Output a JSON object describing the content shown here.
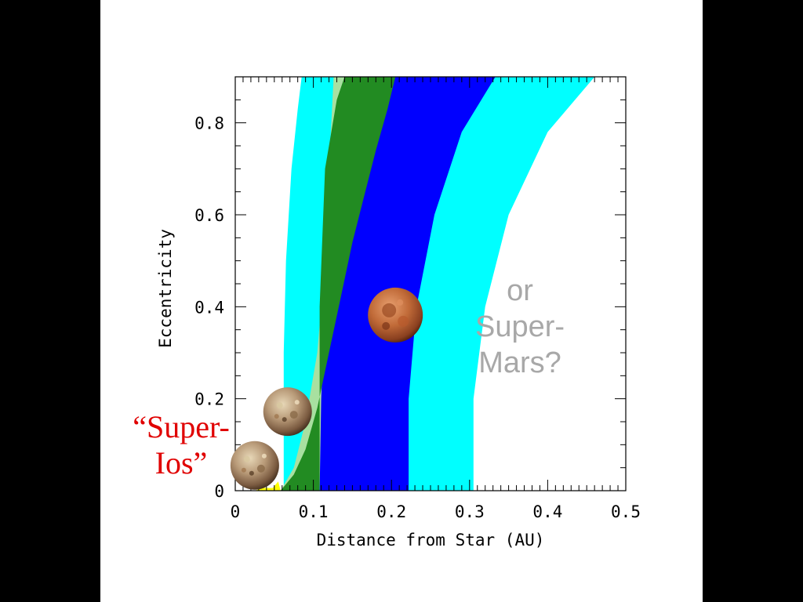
{
  "chart_data": {
    "type": "area",
    "xlabel": "Distance from Star (AU)",
    "ylabel": "Eccentricity",
    "xlim": [
      0,
      0.5
    ],
    "ylim": [
      0,
      0.9
    ],
    "x_ticks": [
      "0",
      "0.1",
      "0.2",
      "0.3",
      "0.4",
      "0.5"
    ],
    "x_tick_values": [
      0,
      0.1,
      0.2,
      0.3,
      0.4,
      0.5
    ],
    "y_ticks": [
      "0",
      "0.2",
      "0.4",
      "0.6",
      "0.8"
    ],
    "y_tick_values": [
      0,
      0.2,
      0.4,
      0.6,
      0.8
    ],
    "regions": [
      {
        "color": "#00ffff",
        "left": [
          [
            0.062,
            0
          ],
          [
            0.062,
            0.3
          ],
          [
            0.065,
            0.5
          ],
          [
            0.072,
            0.7
          ],
          [
            0.08,
            0.83
          ],
          [
            0.085,
            0.9
          ]
        ],
        "right": [
          [
            0.305,
            0
          ],
          [
            0.305,
            0.2
          ],
          [
            0.32,
            0.4
          ],
          [
            0.35,
            0.6
          ],
          [
            0.4,
            0.78
          ],
          [
            0.46,
            0.9
          ]
        ]
      },
      {
        "color": "#0000ff",
        "left": [
          [
            0.108,
            0
          ],
          [
            0.108,
            0.3
          ],
          [
            0.12,
            0.5
          ],
          [
            0.14,
            0.7
          ],
          [
            0.155,
            0.84
          ],
          [
            0.16,
            0.9
          ]
        ],
        "right": [
          [
            0.222,
            0
          ],
          [
            0.222,
            0.2
          ],
          [
            0.232,
            0.4
          ],
          [
            0.255,
            0.6
          ],
          [
            0.29,
            0.78
          ],
          [
            0.333,
            0.9
          ]
        ]
      },
      {
        "color": "#a8e0a0",
        "left": [
          [
            0.058,
            0
          ],
          [
            0.075,
            0.05
          ],
          [
            0.09,
            0.15
          ],
          [
            0.105,
            0.3
          ],
          [
            0.115,
            0.5
          ],
          [
            0.12,
            0.7
          ],
          [
            0.126,
            0.9
          ]
        ],
        "right": [
          [
            0.108,
            0
          ],
          [
            0.11,
            0.2
          ],
          [
            0.115,
            0.4
          ],
          [
            0.125,
            0.6
          ],
          [
            0.14,
            0.8
          ],
          [
            0.16,
            0.9
          ]
        ]
      },
      {
        "color": "#228b22",
        "left": [
          [
            0.058,
            0
          ],
          [
            0.075,
            0.035
          ],
          [
            0.09,
            0.09
          ],
          [
            0.105,
            0.18
          ],
          [
            0.12,
            0.3
          ],
          [
            0.135,
            0.42
          ],
          [
            0.15,
            0.54
          ],
          [
            0.165,
            0.64
          ],
          [
            0.18,
            0.74
          ],
          [
            0.195,
            0.83
          ],
          [
            0.205,
            0.9
          ]
        ],
        "right": [
          [
            0.108,
            0
          ],
          [
            0.108,
            0.12
          ],
          [
            0.108,
            0.4
          ],
          [
            0.115,
            0.7
          ],
          [
            0.13,
            0.85
          ],
          [
            0.14,
            0.9
          ]
        ]
      },
      {
        "color": "#ffff00",
        "left": [
          [
            0.025,
            0
          ],
          [
            0.035,
            0.006
          ]
        ],
        "right": [
          [
            0.058,
            0
          ],
          [
            0.055,
            0.02
          ],
          [
            0.048,
            0.006
          ]
        ]
      }
    ],
    "markers": [
      {
        "name": "Io",
        "x": 0.025,
        "y": 0.055
      },
      {
        "name": "Io",
        "x": 0.067,
        "y": 0.172
      },
      {
        "name": "Mars",
        "x": 0.205,
        "y": 0.382
      }
    ],
    "annotations": [
      {
        "lines": [
          "or",
          "Super-",
          "Mars?"
        ],
        "color": "#a8a8a8"
      },
      {
        "lines": [
          "“Super-",
          "Ios”"
        ],
        "color": "#e00000"
      }
    ]
  }
}
